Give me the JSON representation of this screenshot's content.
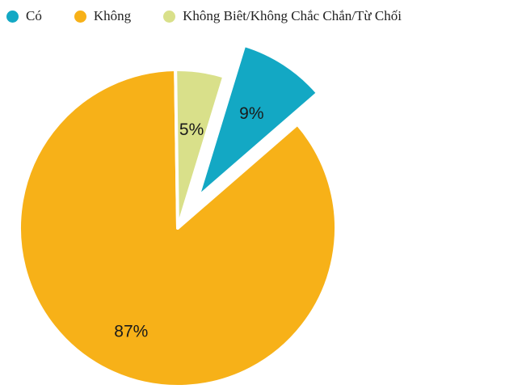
{
  "chart_data": {
    "type": "pie",
    "legend_position": "top-left",
    "slices": [
      {
        "name": "Có",
        "value": 9,
        "label": "9%",
        "color": "#13a8c4",
        "exploded": true
      },
      {
        "name": "Không",
        "value": 87,
        "label": "87%",
        "color": "#f7b118",
        "exploded": false
      },
      {
        "name": "Không Biêt/Không Chắc Chắn/Từ Chối",
        "value": 5,
        "label": "5%",
        "color": "#d9e08a",
        "exploded": false
      }
    ]
  }
}
